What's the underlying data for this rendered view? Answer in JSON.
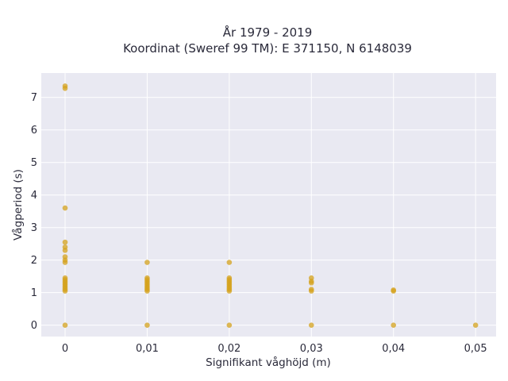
{
  "chart_data": {
    "type": "scatter",
    "title": "År 1979 - 2019",
    "subtitle": "Koordinat (Sweref 99 TM): E 371150, N 6148039",
    "xlabel": "Signifikant våghöjd (m)",
    "ylabel": "Vågperiod (s)",
    "xlim": [
      -0.0029,
      0.0525
    ],
    "ylim": [
      -0.35,
      7.75
    ],
    "x_ticks": [
      0,
      0.01,
      0.02,
      0.03,
      0.04,
      0.05
    ],
    "x_tick_labels": [
      "0",
      "0,01",
      "0,02",
      "0,03",
      "0,04",
      "0,05"
    ],
    "y_ticks": [
      0,
      1,
      2,
      3,
      4,
      5,
      6,
      7
    ],
    "y_tick_labels": [
      "0",
      "1",
      "2",
      "3",
      "4",
      "5",
      "6",
      "7"
    ],
    "grid": true,
    "marker_color": "#D4A21C",
    "plot_background": "#E9E9F2",
    "points": [
      [
        0,
        0
      ],
      [
        0,
        1.05
      ],
      [
        0,
        1.1
      ],
      [
        0,
        1.15
      ],
      [
        0,
        1.2
      ],
      [
        0,
        1.25
      ],
      [
        0,
        1.3
      ],
      [
        0,
        1.35
      ],
      [
        0,
        1.4
      ],
      [
        0,
        1.45
      ],
      [
        0,
        1.93
      ],
      [
        0,
        2.0
      ],
      [
        0,
        2.1
      ],
      [
        0,
        2.3
      ],
      [
        0,
        2.4
      ],
      [
        0,
        2.55
      ],
      [
        0,
        3.6
      ],
      [
        0,
        7.28
      ],
      [
        0,
        7.35
      ],
      [
        0.01,
        0
      ],
      [
        0.01,
        1.05
      ],
      [
        0.01,
        1.1
      ],
      [
        0.01,
        1.15
      ],
      [
        0.01,
        1.2
      ],
      [
        0.01,
        1.25
      ],
      [
        0.01,
        1.3
      ],
      [
        0.01,
        1.35
      ],
      [
        0.01,
        1.4
      ],
      [
        0.01,
        1.45
      ],
      [
        0.01,
        1.93
      ],
      [
        0.02,
        0
      ],
      [
        0.02,
        1.05
      ],
      [
        0.02,
        1.1
      ],
      [
        0.02,
        1.15
      ],
      [
        0.02,
        1.2
      ],
      [
        0.02,
        1.25
      ],
      [
        0.02,
        1.3
      ],
      [
        0.02,
        1.35
      ],
      [
        0.02,
        1.4
      ],
      [
        0.02,
        1.45
      ],
      [
        0.02,
        1.93
      ],
      [
        0.03,
        0
      ],
      [
        0.03,
        1.05
      ],
      [
        0.03,
        1.1
      ],
      [
        0.03,
        1.3
      ],
      [
        0.03,
        1.35
      ],
      [
        0.03,
        1.45
      ],
      [
        0.04,
        0
      ],
      [
        0.04,
        1.05
      ],
      [
        0.04,
        1.08
      ],
      [
        0.05,
        0
      ]
    ]
  }
}
